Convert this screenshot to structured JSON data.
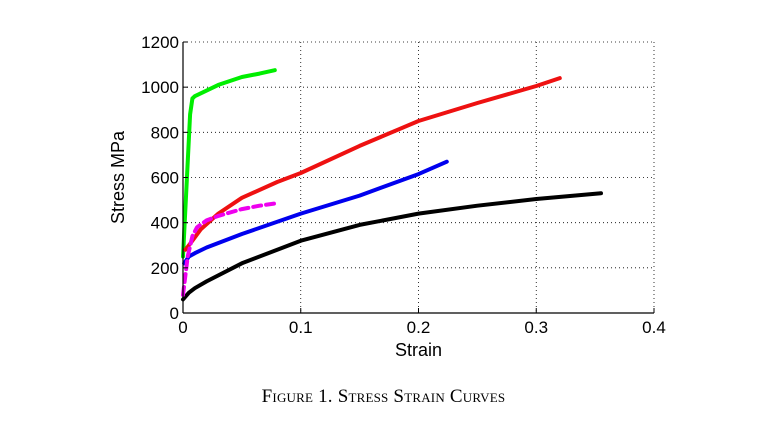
{
  "chart_data": {
    "type": "line",
    "title": "",
    "xlabel": "Strain",
    "ylabel": "Stress MPa",
    "xlim": [
      0,
      0.4
    ],
    "ylim": [
      0,
      1200
    ],
    "xticks": [
      0,
      0.1,
      0.2,
      0.3,
      0.4
    ],
    "xtick_labels": [
      "0",
      "0.1",
      "0.2",
      "0.3",
      "0.4"
    ],
    "yticks": [
      0,
      200,
      400,
      600,
      800,
      1000,
      1200
    ],
    "ytick_labels": [
      "0",
      "200",
      "400",
      "600",
      "800",
      "1000",
      "1200"
    ],
    "grid": "dotted",
    "series": [
      {
        "name": "green",
        "color": "#00ee00",
        "dash": "solid",
        "x": [
          0.0,
          0.003,
          0.006,
          0.008,
          0.01,
          0.02,
          0.03,
          0.05,
          0.065,
          0.078
        ],
        "y": [
          250,
          560,
          880,
          950,
          960,
          985,
          1010,
          1045,
          1060,
          1075
        ]
      },
      {
        "name": "red",
        "color": "#ee1111",
        "dash": "solid",
        "x": [
          0.002,
          0.008,
          0.015,
          0.03,
          0.05,
          0.08,
          0.1,
          0.15,
          0.2,
          0.25,
          0.3,
          0.32
        ],
        "y": [
          280,
          320,
          370,
          440,
          510,
          580,
          620,
          740,
          850,
          930,
          1005,
          1040
        ]
      },
      {
        "name": "blue",
        "color": "#0000ee",
        "dash": "solid",
        "x": [
          0.001,
          0.005,
          0.01,
          0.02,
          0.05,
          0.1,
          0.15,
          0.2,
          0.224
        ],
        "y": [
          220,
          250,
          265,
          290,
          350,
          440,
          520,
          615,
          670
        ]
      },
      {
        "name": "black",
        "color": "#000000",
        "dash": "solid",
        "x": [
          0.0,
          0.005,
          0.01,
          0.02,
          0.05,
          0.1,
          0.15,
          0.2,
          0.25,
          0.3,
          0.355
        ],
        "y": [
          60,
          90,
          110,
          140,
          220,
          320,
          390,
          440,
          475,
          505,
          530
        ]
      },
      {
        "name": "magenta",
        "color": "#ee00ee",
        "dash": "dashed",
        "x": [
          0.0,
          0.004,
          0.008,
          0.012,
          0.02,
          0.03,
          0.05,
          0.065,
          0.078
        ],
        "y": [
          80,
          250,
          340,
          380,
          410,
          430,
          460,
          475,
          485
        ]
      }
    ]
  },
  "caption": {
    "label": "Figure",
    "number": "1.",
    "text": "Stress Strain Curves"
  }
}
